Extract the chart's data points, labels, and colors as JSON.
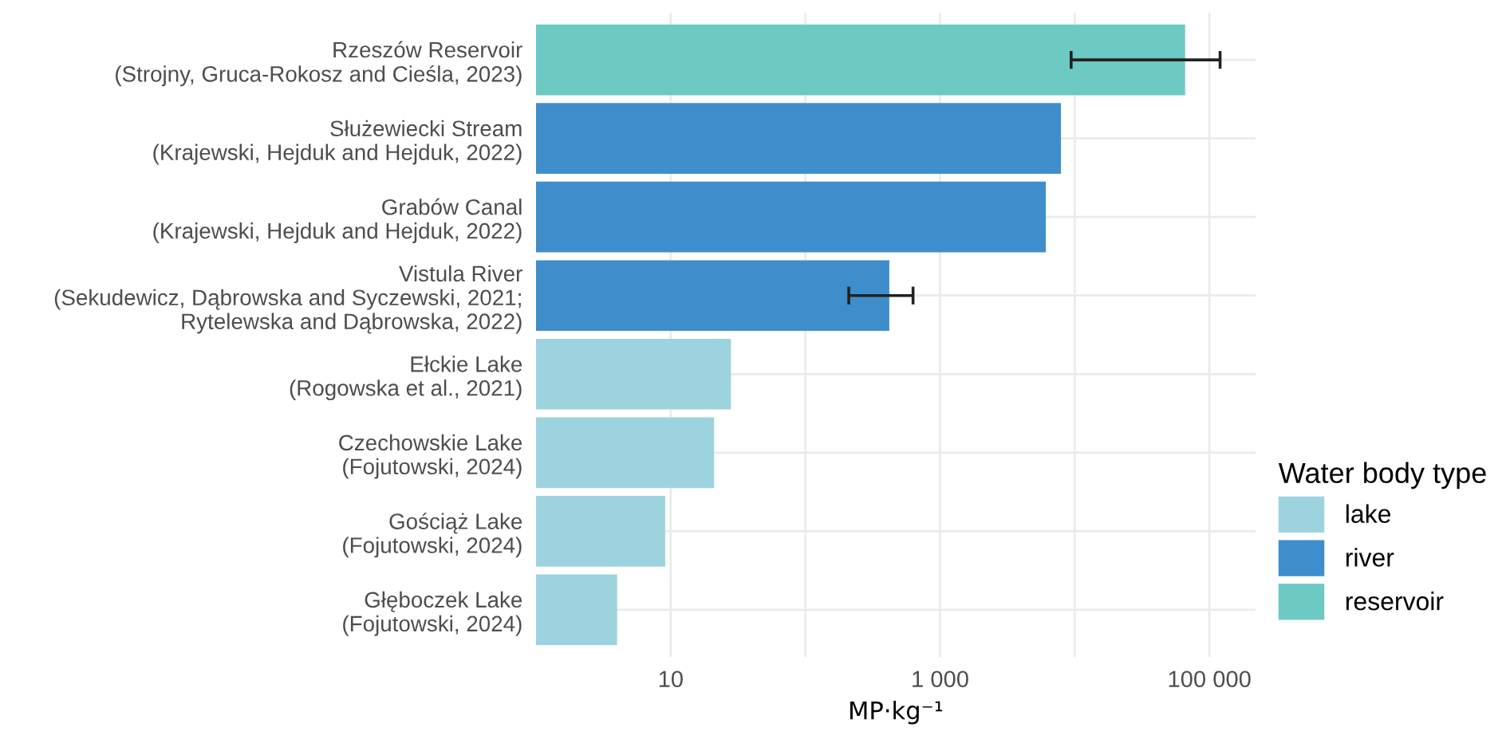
{
  "chart_data": {
    "type": "bar",
    "orientation": "horizontal",
    "xlabel": "MP·kg⁻¹",
    "legend_title": "Water body type",
    "categories": [
      "Rzeszów Reservoir\n(Strojny, Gruca-Rokosz and Cieśla, 2023)",
      "Służewiecki Stream\n(Krajewski, Hejduk and Hejduk, 2022)",
      "Grabów Canal\n(Krajewski, Hejduk and Hejduk, 2022)",
      "Vistula River\n(Sekudewicz, Dąbrowska and Syczewski, 2021;\nRytelewska and Dąbrowska, 2022)",
      "Ełckie Lake\n(Rogowska et al., 2021)",
      "Czechowskie Lake\n(Fojutowski, 2024)",
      "Gościąż Lake\n(Fojutowski, 2024)",
      "Głęboczek Lake\n(Fojutowski, 2024)"
    ],
    "series": [
      {
        "name": "lake",
        "color": "#9dd3df",
        "values": [
          null,
          null,
          null,
          null,
          28,
          21,
          9.1,
          4.0
        ]
      },
      {
        "name": "river",
        "color": "#3f8ecb",
        "values": [
          null,
          7900,
          6100,
          420,
          null,
          null,
          null,
          null
        ],
        "errors": [
          null,
          null,
          null,
          [
            210,
            630
          ],
          null,
          null,
          null,
          null
        ]
      },
      {
        "name": "reservoir",
        "color": "#6dc9c4",
        "values": [
          66000,
          null,
          null,
          null,
          null,
          null,
          null,
          null
        ],
        "errors": [
          [
            9400,
            120000
          ],
          null,
          null,
          null,
          null,
          null,
          null,
          null
        ]
      }
    ],
    "log": "x",
    "xlim": [
      1,
      220000
    ],
    "xticks": [
      {
        "value": 10,
        "label": "10"
      },
      {
        "value": 100,
        "label": null
      },
      {
        "value": 1000,
        "label": "1 000"
      },
      {
        "value": 10000,
        "label": null
      },
      {
        "value": 100000,
        "label": "100 000"
      }
    ],
    "grid": true,
    "legend": "right"
  }
}
